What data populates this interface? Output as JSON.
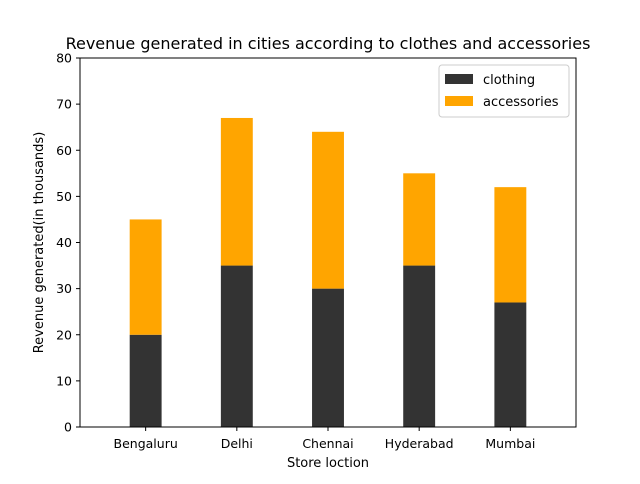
{
  "chart_data": {
    "type": "bar",
    "stacked": true,
    "title": "Revenue generated in cities according to clothes and accessories",
    "xlabel": "Store loction",
    "ylabel": "Revenue generated(in thousands)",
    "categories": [
      "Bengaluru",
      "Delhi",
      "Chennai",
      "Hyderabad",
      "Mumbai"
    ],
    "series": [
      {
        "name": "clothing",
        "values": [
          20,
          35,
          30,
          35,
          27
        ],
        "color": "#333333"
      },
      {
        "name": "accessories",
        "values": [
          25,
          32,
          34,
          20,
          25
        ],
        "color": "#ffa500"
      }
    ],
    "ylim": [
      0,
      80
    ],
    "yticks": [
      0,
      10,
      20,
      30,
      40,
      50,
      60,
      70,
      80
    ],
    "grid": false,
    "legend_position": "top-right"
  }
}
